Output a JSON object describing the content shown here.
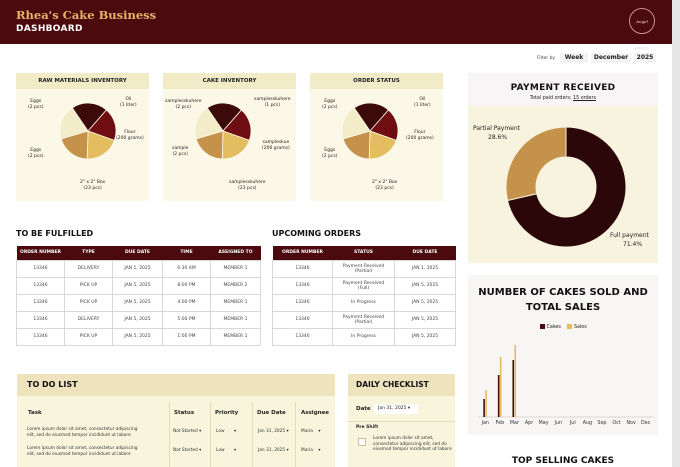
{
  "header": {
    "business_name": "Rhea's Cake Business",
    "page_name": "DASHBOARD",
    "logo_text": "Angel Bakery"
  },
  "filters": {
    "label": "Filter by",
    "period": "Week",
    "month": "December",
    "year": "2025"
  },
  "raw_materials": {
    "title": "RAW MATERIALS INVENTORY",
    "labels": [
      "Eggs\n(2 pcs)",
      "Oil\n(1 liter)",
      "Flour\n(200 grams)",
      "2\" x 2\" Box\n(23 pcs)",
      "Eggs\n(2 pcs)"
    ]
  },
  "cake_inventory": {
    "title": "CAKE INVENTORY",
    "labels": [
      "samplesskuhere\n(2 pcs)",
      "samplesskuhere\n(1 pcs)",
      "sampleskue\n(200 grams)",
      "samplesskuhere\n(23 pcs)",
      "sample\n(2 pcs)"
    ]
  },
  "order_status": {
    "title": "ORDER STATUS",
    "labels": [
      "Eggs\n(2 pcs)",
      "Oil\n(1 liter)",
      "Flour\n(200 grams)",
      "2\" x 2\" Box\n(23 pcs)",
      "Eggs\n(2 pcs)"
    ]
  },
  "pie_colors": [
    "#3d0a0c",
    "#6e0d12",
    "#e3bd60",
    "#c4924a",
    "#f3ecc8"
  ],
  "payment": {
    "title": "PAYMENT RECEIVED",
    "subtitle_prefix": "Total paid orders:",
    "subtitle_value": "15 orders",
    "partial_label": "Partial Payment",
    "partial_pct": "28.6%",
    "full_label": "Full payment",
    "full_pct": "71.4%",
    "partial_value": 28.6,
    "full_value": 71.4,
    "colors": {
      "partial": "#c4924a",
      "full": "#2b0709"
    }
  },
  "to_be_fulfilled": {
    "title": "TO BE FULFILLED",
    "columns": [
      "ORDER NUMBER",
      "TYPE",
      "DUE DATE",
      "TIME",
      "ASSIGNED TO"
    ],
    "rows": [
      [
        "13346",
        "DELIVERY",
        "JAN 1, 2025",
        "6:30 AM",
        "MEMBER 1"
      ],
      [
        "13346",
        "PICK UP",
        "JAN 5, 2025",
        "8:00 PM",
        "MEMBER 2"
      ],
      [
        "13346",
        "PICK UP",
        "JAN 5, 2025",
        "4:00 PM",
        "MEMBER 1"
      ],
      [
        "13346",
        "DELIVERY",
        "JAN 5, 2025",
        "5:00 PM",
        "MEMBER 1"
      ],
      [
        "13346",
        "PICK UP",
        "JAN 5, 2025",
        "1:00 PM",
        "MEMBER 1"
      ]
    ]
  },
  "upcoming_orders": {
    "title": "UPCOMING ORDERS",
    "columns": [
      "ORDER NUMBER",
      "STATUS",
      "DUE DATE"
    ],
    "rows": [
      [
        "13346",
        "Payment Received\n(Partial)",
        "JAN 1, 2025"
      ],
      [
        "13346",
        "Payment Received\n(Full)",
        "JAN 5, 2025"
      ],
      [
        "13346",
        "In Progress",
        "JAN 5, 2025"
      ],
      [
        "13346",
        "Payment Received\n(Partial)",
        "JAN 5, 2025"
      ],
      [
        "13346",
        "In Progress",
        "JAN 5, 2025"
      ]
    ]
  },
  "sales": {
    "title": "NUMBER OF CAKES SOLD AND TOTAL SALES",
    "legend_cakes": "Cakes",
    "legend_sales": "Sales",
    "colors": {
      "cakes": "#4a0a0e",
      "sales": "#e3bd60"
    }
  },
  "chart_data": {
    "type": "bar",
    "title": "NUMBER OF CAKES SOLD AND TOTAL SALES",
    "categories": [
      "Jan",
      "Feb",
      "Mar",
      "Apr",
      "May",
      "Jun",
      "Jul",
      "Aug",
      "Sep",
      "Oct",
      "Nov",
      "Dec"
    ],
    "series": [
      {
        "name": "Cakes",
        "values": [
          3,
          7,
          9.5,
          0,
          0,
          0,
          0,
          0,
          0,
          0,
          0,
          0
        ]
      },
      {
        "name": "Sales",
        "values": [
          4.5,
          10,
          12,
          0,
          0,
          0,
          0,
          0,
          0,
          0,
          0,
          0
        ]
      }
    ],
    "ylim": [
      0,
      13
    ],
    "grid": false,
    "legend": "top-center"
  },
  "todo": {
    "title": "TO DO LIST",
    "columns": [
      "Task",
      "Status",
      "Priority",
      "Due Date",
      "Assignee"
    ],
    "rows": [
      {
        "task": "Lorem ipsum dolor sit amet, consectetur adipiscing\nelit, sed do eiusmod tempor incididunt ut labore",
        "status": "Not Started",
        "priority": "Low",
        "due": "Jan 31, 2025",
        "assignee": "Maria"
      },
      {
        "task": "Lorem ipsum dolor sit amet, consectetur adipiscing\nelit, sed do eiusmod tempor incididunt ut labore",
        "status": "Not Started",
        "priority": "Low",
        "due": "Jan 31, 2025",
        "assignee": "Maria"
      }
    ]
  },
  "checklist": {
    "title": "DAILY CHECKLIST",
    "date_label": "Date",
    "date_value": "Jan 31, 2025",
    "shift": "Pre Shift",
    "items": [
      "Lorem ipsum dolor sit amet,\nconsectetur adipiscing elit, sed do\neiusmod tempor incididunt ut labore"
    ]
  },
  "top_selling": {
    "title": "TOP SELLING CAKES"
  }
}
